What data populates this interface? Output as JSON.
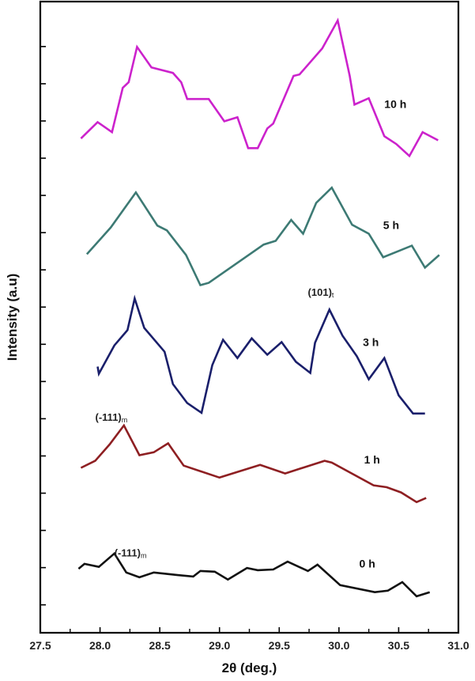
{
  "chart_data": {
    "type": "line",
    "title": "",
    "xlabel": "2θ (deg.)",
    "ylabel": "Intensity (a.u)",
    "xlim": [
      27.5,
      31.0
    ],
    "ylim": [
      0,
      170
    ],
    "xticks": [
      27.5,
      28.0,
      28.5,
      29.0,
      29.5,
      30.0,
      30.5,
      31.0
    ],
    "xtick_labels": [
      "27.5",
      "28.0",
      "28.5",
      "29.0",
      "29.5",
      "30.0",
      "30.5",
      "31.0"
    ],
    "x_minor_step": 0.25,
    "yticks": [
      7.5,
      17.5,
      27.5,
      37.5,
      47.5,
      57.5,
      67.5,
      77.5,
      87.5,
      97.5,
      107.5,
      117.5,
      127.5,
      137.5,
      147.5,
      157.5
    ],
    "ytick_labels_shown": false,
    "grid": false,
    "legend": "inline labels at right of each curve",
    "series": [
      {
        "name": "10 h",
        "color": "#cc22cc",
        "x": [
          27.84,
          27.98,
          28.1,
          28.19,
          28.24,
          28.31,
          28.43,
          28.61,
          28.68,
          28.73,
          28.91,
          29.04,
          29.15,
          29.24,
          29.32,
          29.4,
          29.45,
          29.62,
          29.67,
          29.86,
          29.99,
          30.09,
          30.13,
          30.25,
          30.38,
          30.48,
          30.59,
          30.7,
          30.83
        ],
        "y": [
          132.8,
          137.2,
          134.5,
          146.4,
          147.9,
          157.4,
          151.9,
          150.4,
          147.9,
          143.4,
          143.4,
          137.4,
          138.5,
          130.2,
          130.2,
          135.5,
          136.8,
          149.6,
          150.0,
          157.0,
          164.5,
          149.6,
          141.9,
          143.6,
          133.4,
          131.3,
          128.1,
          134.5,
          132.3
        ],
        "label_at": [
          30.38,
          141.0
        ]
      },
      {
        "name": "5 h",
        "color": "#3d7a74",
        "x": [
          27.89,
          28.09,
          28.3,
          28.48,
          28.56,
          28.72,
          28.84,
          28.91,
          29.37,
          29.47,
          29.6,
          29.7,
          29.81,
          29.94,
          30.11,
          30.25,
          30.37,
          30.61,
          30.72,
          30.84
        ],
        "y": [
          101.7,
          108.9,
          118.3,
          109.4,
          108.1,
          101.5,
          93.4,
          94.0,
          104.3,
          105.3,
          110.9,
          107.2,
          115.5,
          119.6,
          109.6,
          107.2,
          100.9,
          104.0,
          98.1,
          101.5
        ],
        "label_at": [
          30.37,
          108.5
        ]
      },
      {
        "name": "3 h",
        "color": "#1a1f6b",
        "x": [
          27.98,
          27.99,
          28.12,
          28.23,
          28.29,
          28.37,
          28.54,
          28.61,
          28.73,
          28.85,
          28.94,
          29.03,
          29.15,
          29.27,
          29.4,
          29.52,
          29.64,
          29.76,
          29.8,
          29.92,
          30.03,
          30.15,
          30.25,
          30.38,
          30.5,
          30.62,
          30.72
        ],
        "y": [
          71.5,
          69.6,
          77.2,
          81.3,
          89.8,
          81.9,
          75.5,
          66.8,
          61.7,
          59.1,
          71.9,
          78.7,
          73.8,
          79.1,
          74.7,
          78.1,
          72.8,
          69.8,
          77.9,
          86.8,
          79.8,
          74.3,
          68.1,
          73.8,
          63.8,
          58.9,
          58.9
        ],
        "label_at": [
          30.2,
          77.0
        ]
      },
      {
        "name": "1 h",
        "color": "#8e1f22",
        "x": [
          27.84,
          27.96,
          28.08,
          28.2,
          28.33,
          28.45,
          28.57,
          28.7,
          29.0,
          29.34,
          29.55,
          29.88,
          29.94,
          30.29,
          30.4,
          30.52,
          30.65,
          30.73
        ],
        "y": [
          44.3,
          46.2,
          50.6,
          55.7,
          47.7,
          48.5,
          50.9,
          44.9,
          41.7,
          45.1,
          42.8,
          46.2,
          45.7,
          39.6,
          39.1,
          37.7,
          35.1,
          36.2
        ],
        "label_at": [
          30.21,
          45.5
        ]
      },
      {
        "name": "0 h",
        "color": "#111111",
        "x": [
          27.82,
          27.87,
          27.99,
          28.12,
          28.22,
          28.33,
          28.45,
          28.65,
          28.78,
          28.84,
          28.96,
          29.07,
          29.23,
          29.32,
          29.45,
          29.57,
          29.74,
          29.82,
          30.01,
          30.3,
          30.41,
          30.53,
          30.65,
          30.76
        ],
        "y": [
          17.2,
          18.5,
          17.7,
          21.3,
          16.2,
          14.9,
          16.2,
          15.5,
          15.1,
          16.6,
          16.4,
          14.3,
          17.4,
          16.8,
          17.0,
          19.1,
          16.6,
          18.3,
          12.8,
          10.9,
          11.3,
          13.6,
          9.8,
          10.9
        ],
        "label_at": [
          30.17,
          17.5
        ]
      }
    ],
    "annotations": [
      {
        "text": "(101)",
        "sub": "t",
        "at": [
          29.74,
          90.5
        ]
      },
      {
        "text": "(-111)",
        "sub": "m",
        "at": [
          27.96,
          57.0
        ]
      },
      {
        "text": "(-111)",
        "sub": "m",
        "at": [
          28.12,
          20.5
        ]
      }
    ]
  }
}
